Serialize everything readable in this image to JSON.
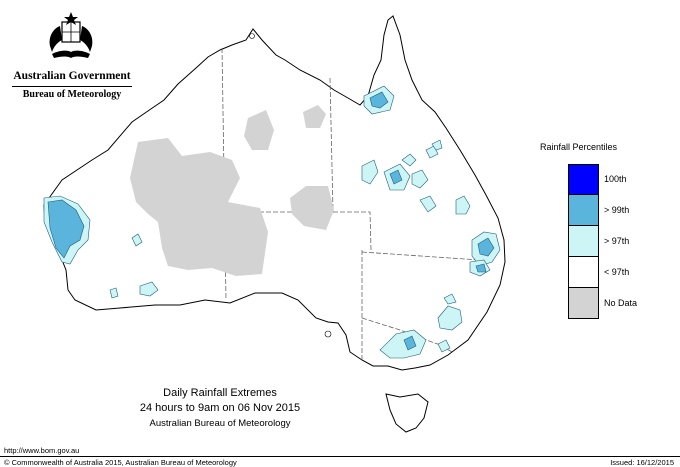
{
  "header": {
    "government": "Australian Government",
    "bureau": "Bureau of Meteorology"
  },
  "map": {
    "region": "Australia",
    "colors": {
      "background": "#ffffff",
      "land": "#ffffff",
      "coastline": "#000000",
      "state_border": "#666666",
      "no_data": "#d3d3d3",
      "p97": "#cdf5f5",
      "p99": "#5ab4dc",
      "p100": "#0000ff"
    }
  },
  "legend": {
    "title": "Rainfall Percentiles",
    "items": [
      {
        "label": "100th",
        "color": "#0000ff"
      },
      {
        "label": "> 99th",
        "color": "#5ab4dc"
      },
      {
        "label": "> 97th",
        "color": "#cdf5f5"
      },
      {
        "label": "< 97th",
        "color": "#ffffff"
      },
      {
        "label": "No Data",
        "color": "#d3d3d3"
      }
    ]
  },
  "caption": {
    "title": "Daily Rainfall Extremes",
    "period": "24 hours to 9am on 06 Nov 2015",
    "organisation": "Australian Bureau of Meteorology"
  },
  "footer": {
    "url": "http://www.bom.gov.au",
    "copyright": "© Commonwealth of Australia 2015, Australian Bureau of Meteorology",
    "issued": "Issued: 16/12/2015"
  }
}
